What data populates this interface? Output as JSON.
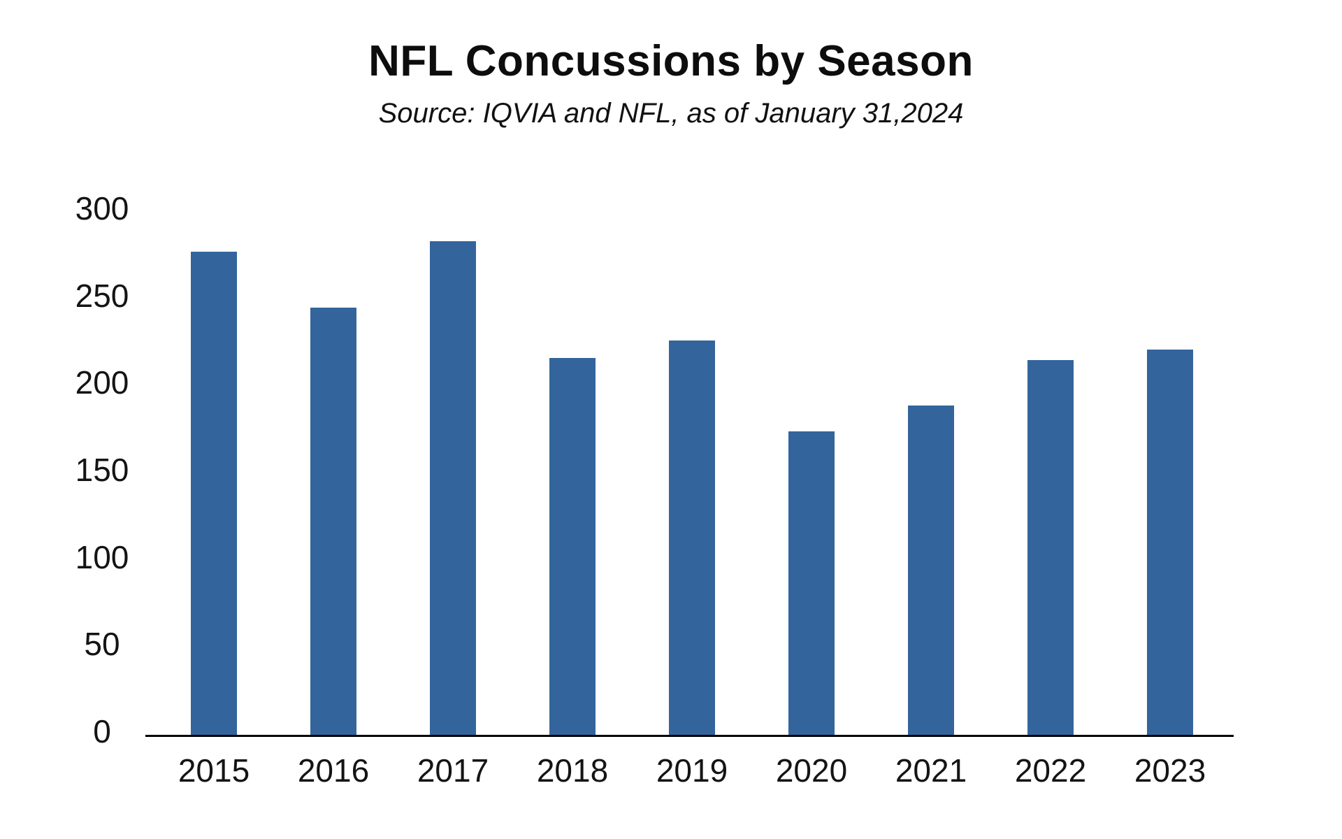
{
  "chart_data": {
    "type": "bar",
    "title": "NFL Concussions by Season",
    "subtitle": "Source: IQVIA and NFL, as of January 31,2024",
    "categories": [
      "2015",
      "2016",
      "2017",
      "2018",
      "2019",
      "2020",
      "2021",
      "2022",
      "2023"
    ],
    "values": [
      275,
      243,
      281,
      214,
      224,
      172,
      187,
      213,
      219
    ],
    "xlabel": "",
    "ylabel": "",
    "ylim": [
      0,
      300
    ],
    "ytick_step": 50,
    "ytick_labels": [
      "0",
      "50",
      "100",
      "150",
      "200",
      "250",
      "300"
    ],
    "grid": "off",
    "legend": "none",
    "colors": {
      "bar": "#33659C",
      "axis": "#000000",
      "text": "#111111"
    }
  }
}
